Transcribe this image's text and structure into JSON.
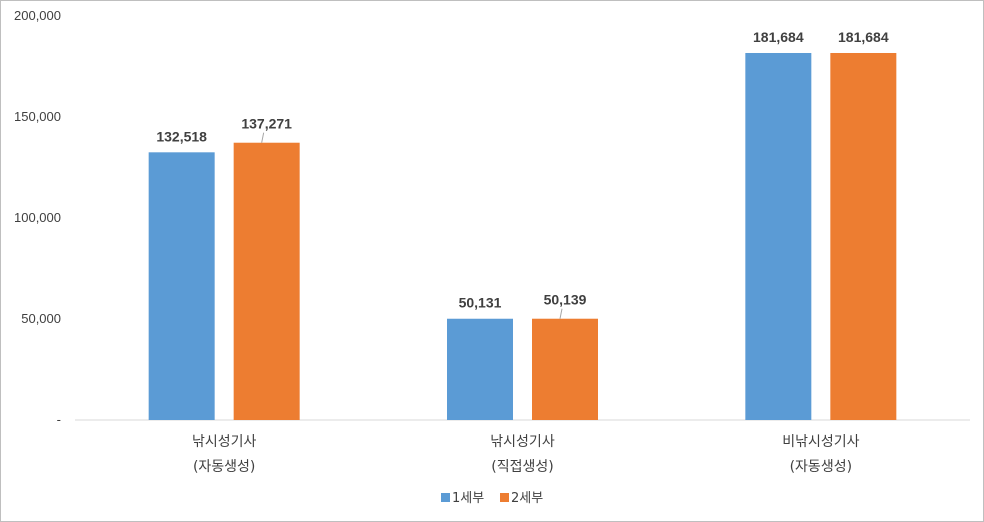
{
  "chart_data": {
    "type": "bar",
    "categories": [
      [
        "낚시성기사",
        "(자동생성)"
      ],
      [
        "낚시성기사",
        "(직접생성)"
      ],
      [
        "비낚시성기사",
        "(자동생성)"
      ]
    ],
    "series": [
      {
        "name": "1세부",
        "color": "#5b9bd5",
        "values": [
          132518,
          50131,
          181684
        ],
        "labels": [
          "132,518",
          "50,131",
          "181,684"
        ]
      },
      {
        "name": "2세부",
        "color": "#ed7d31",
        "values": [
          137271,
          50139,
          181684
        ],
        "labels": [
          "137,271",
          "50,139",
          "181,684"
        ]
      }
    ],
    "ylim": [
      0,
      200000
    ],
    "yticks": [
      0,
      50000,
      100000,
      150000,
      200000
    ],
    "ytick_labels": [
      "-",
      "50,000",
      "100,000",
      "150,000",
      "200,000"
    ],
    "legend_position": "bottom",
    "grid": false
  }
}
